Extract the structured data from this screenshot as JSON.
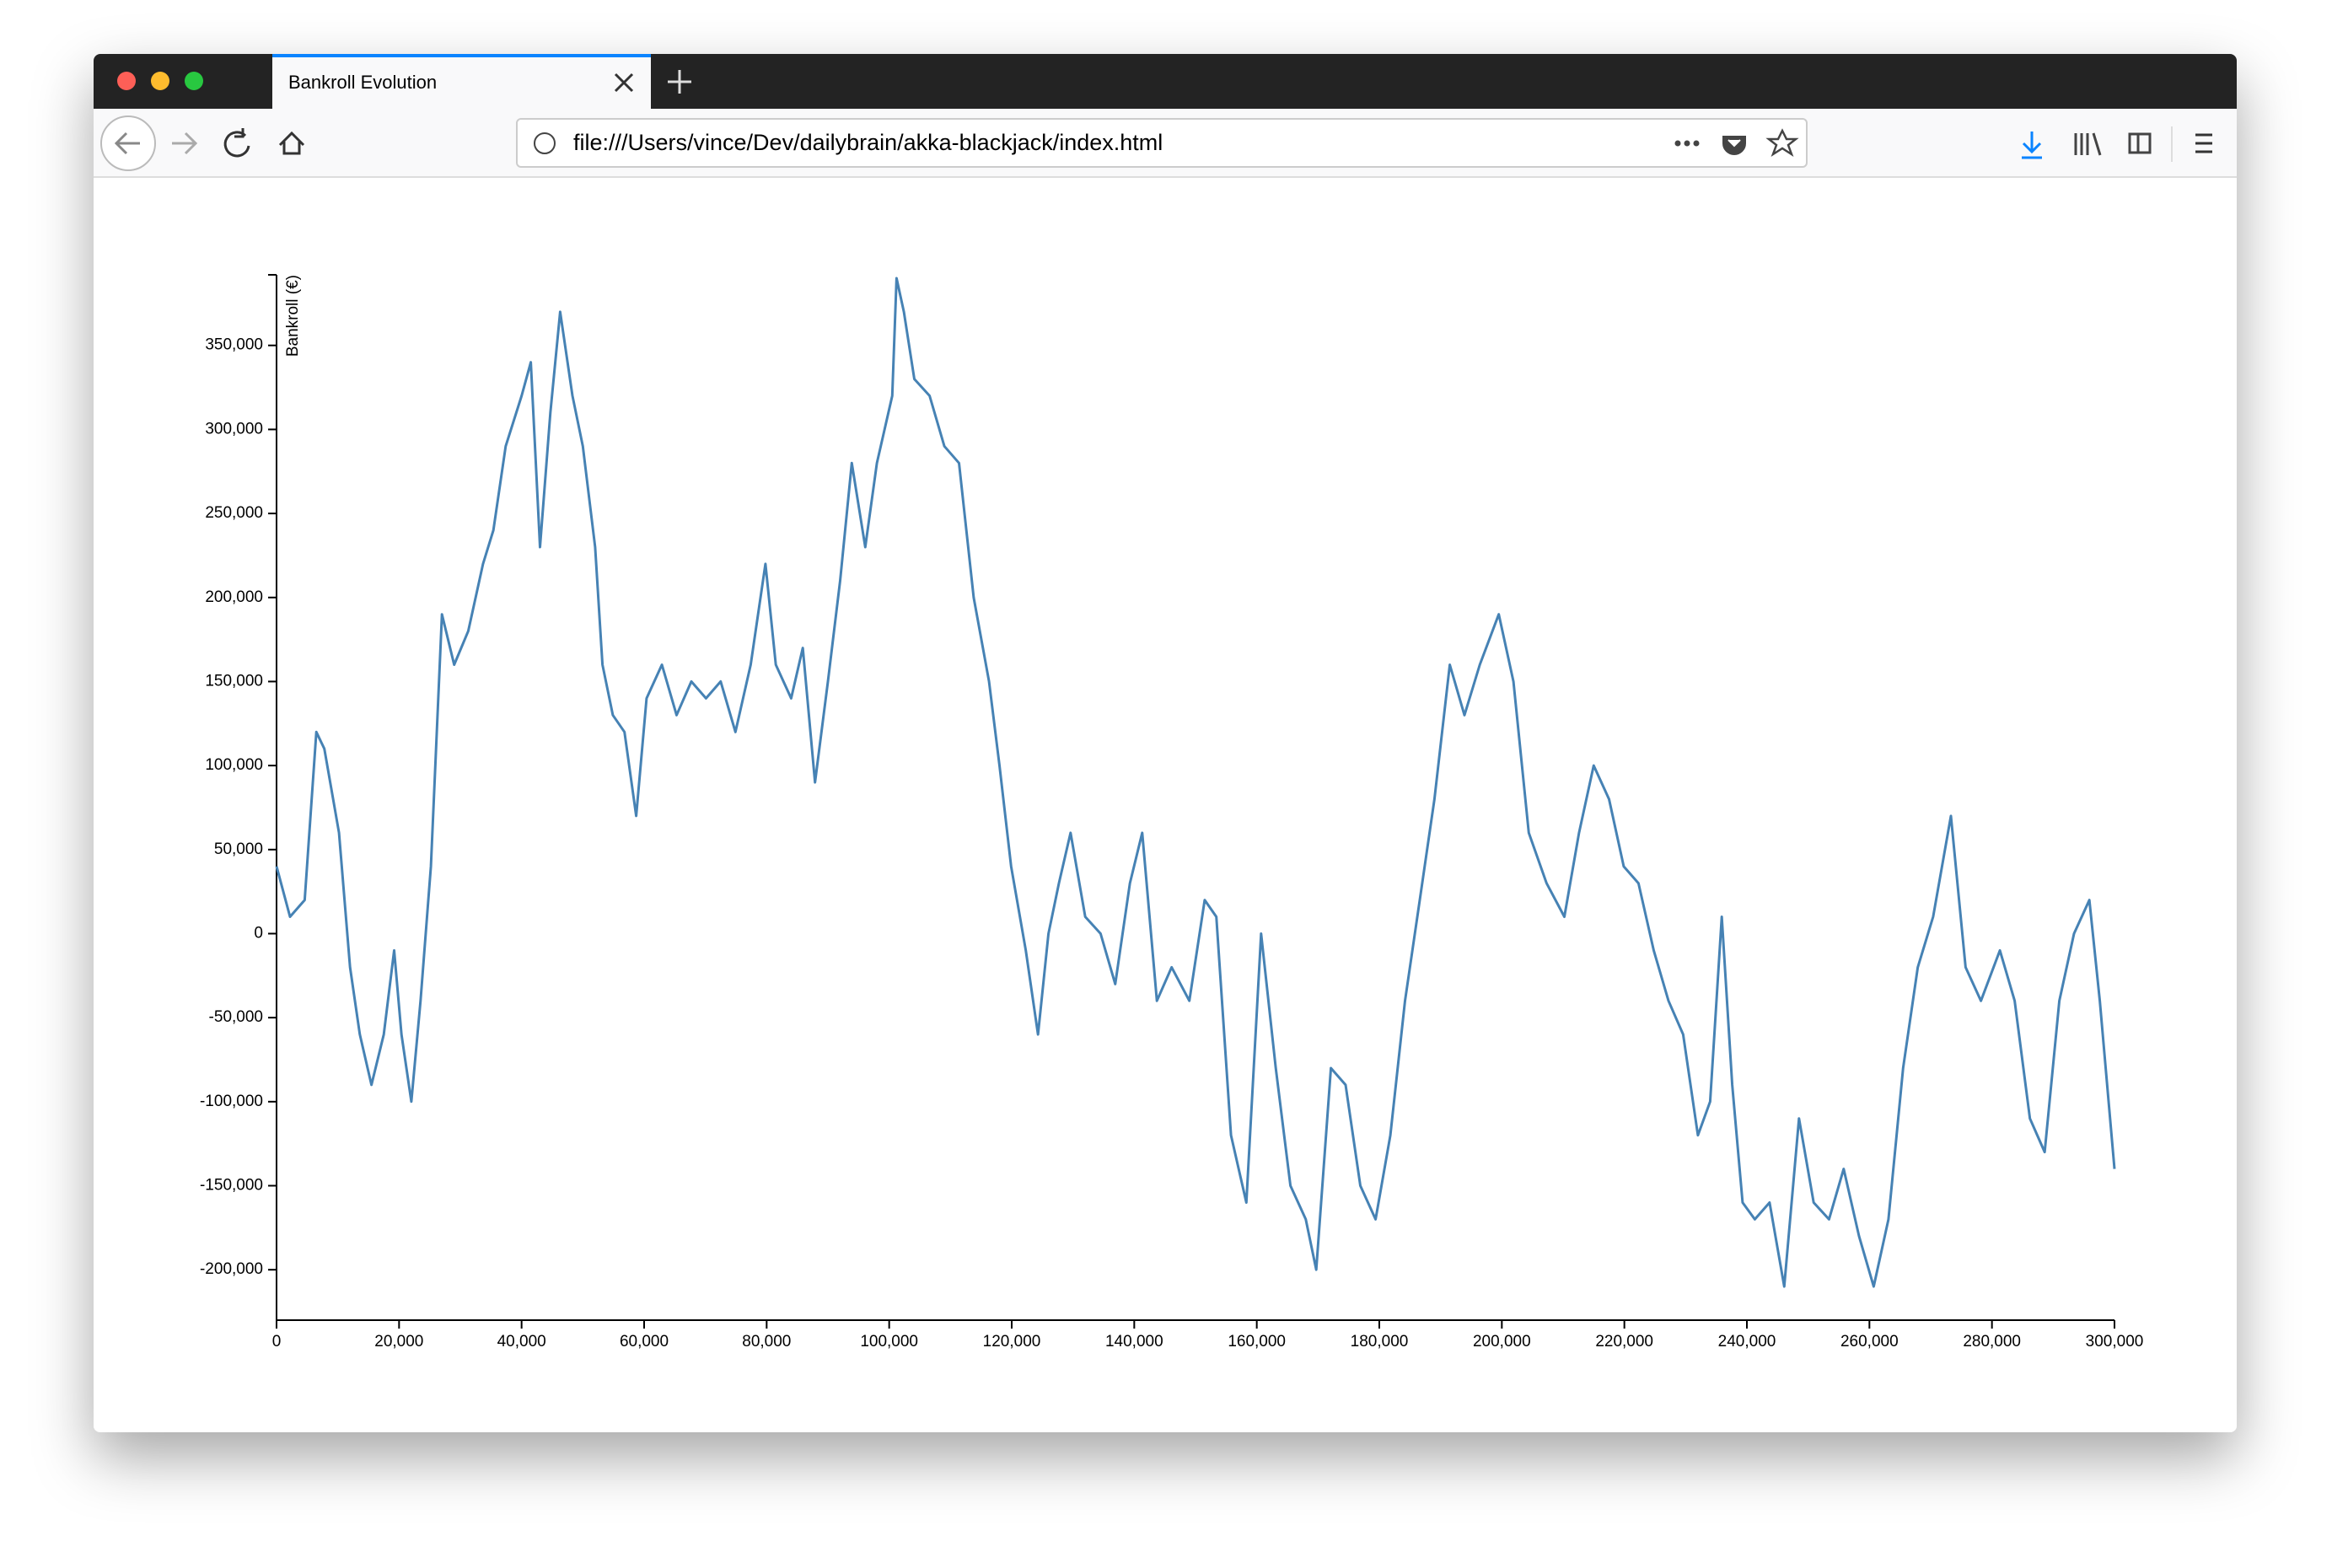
{
  "browser": {
    "tab_title": "Bankroll Evolution",
    "url": "file:///Users/vince/Dev/dailybrain/akka-blackjack/index.html"
  },
  "chart_data": {
    "type": "line",
    "y_label": "Bankroll (€)",
    "color": "#4682b4",
    "x": [
      0,
      2200,
      4600,
      6500,
      7800,
      10200,
      12000,
      13600,
      15500,
      17500,
      19200,
      20400,
      22000,
      23500,
      25200,
      27000,
      29000,
      31300,
      33700,
      35400,
      37400,
      40000,
      41500,
      43000,
      44700,
      46300,
      48300,
      50000,
      52000,
      53200,
      54900,
      56800,
      58700,
      60400,
      62900,
      65300,
      67700,
      70100,
      72500,
      74900,
      77400,
      79800,
      81500,
      84000,
      85900,
      87900,
      90000,
      92000,
      93900,
      96100,
      98000,
      100500,
      101200,
      102400,
      104100,
      106600,
      109000,
      111400,
      113800,
      116300,
      118000,
      119900,
      122300,
      124300,
      126000,
      127700,
      129600,
      132000,
      134500,
      136900,
      139300,
      141300,
      143700,
      146100,
      149000,
      151500,
      153400,
      155800,
      158300,
      160700,
      163100,
      165500,
      168000,
      169700,
      172100,
      174500,
      176900,
      179400,
      181800,
      184200,
      186600,
      189000,
      191500,
      193900,
      196400,
      199500,
      201900,
      204400,
      207300,
      210200,
      212600,
      215000,
      217500,
      219900,
      222300,
      224800,
      227200,
      229600,
      232000,
      234000,
      235900,
      237600,
      239300,
      241300,
      243700,
      246100,
      248500,
      250900,
      253400,
      255800,
      258300,
      260700,
      263100,
      265500,
      267900,
      270400,
      273300,
      275700,
      278200,
      281300,
      283700,
      286200,
      288600,
      291000,
      293400,
      295900,
      297600,
      300000
    ],
    "values": [
      40000,
      10000,
      20000,
      120000,
      110000,
      60000,
      -20000,
      -60000,
      -90000,
      -60000,
      -10000,
      -60000,
      -100000,
      -40000,
      40000,
      190000,
      160000,
      180000,
      220000,
      240000,
      290000,
      320000,
      340000,
      230000,
      310000,
      370000,
      320000,
      290000,
      230000,
      160000,
      130000,
      120000,
      70000,
      140000,
      160000,
      130000,
      150000,
      140000,
      150000,
      120000,
      160000,
      220000,
      160000,
      140000,
      170000,
      90000,
      150000,
      210000,
      280000,
      230000,
      280000,
      320000,
      390000,
      370000,
      330000,
      320000,
      290000,
      280000,
      200000,
      150000,
      100000,
      40000,
      -10000,
      -60000,
      0,
      30000,
      60000,
      10000,
      0,
      -30000,
      30000,
      60000,
      -40000,
      -20000,
      -40000,
      20000,
      10000,
      -120000,
      -160000,
      0,
      -80000,
      -150000,
      -170000,
      -200000,
      -80000,
      -90000,
      -150000,
      -170000,
      -120000,
      -40000,
      20000,
      80000,
      160000,
      130000,
      160000,
      190000,
      150000,
      60000,
      30000,
      10000,
      60000,
      100000,
      80000,
      40000,
      30000,
      -10000,
      -40000,
      -60000,
      -120000,
      -100000,
      10000,
      -90000,
      -160000,
      -170000,
      -160000,
      -210000,
      -110000,
      -160000,
      -170000,
      -140000,
      -180000,
      -210000,
      -170000,
      -80000,
      -20000,
      10000,
      70000,
      -20000,
      -40000,
      -10000,
      -40000,
      -110000,
      -130000,
      -40000,
      0,
      20000,
      -40000,
      -140000
    ],
    "xlim": [
      0,
      300000
    ],
    "ylim": [
      -230000,
      392000
    ],
    "xticks": [
      0,
      {
        "value": 20000,
        "label": "20,000"
      },
      {
        "value": 40000,
        "label": "40,000"
      },
      {
        "value": 60000,
        "label": "60,000"
      },
      {
        "value": 80000,
        "label": "80,000"
      },
      {
        "value": 100000,
        "label": "100,000"
      },
      {
        "value": 120000,
        "label": "120,000"
      },
      {
        "value": 140000,
        "label": "140,000"
      },
      {
        "value": 160000,
        "label": "160,000"
      },
      {
        "value": 180000,
        "label": "180,000"
      },
      {
        "value": 200000,
        "label": "200,000"
      },
      {
        "value": 220000,
        "label": "220,000"
      },
      {
        "value": 240000,
        "label": "240,000"
      },
      {
        "value": 260000,
        "label": "260,000"
      },
      {
        "value": 280000,
        "label": "280,000"
      },
      {
        "value": 300000,
        "label": "300,000"
      }
    ],
    "yticks": [
      {
        "value": -200000,
        "label": "-200,000"
      },
      {
        "value": -150000,
        "label": "-150,000"
      },
      {
        "value": -100000,
        "label": "-100,000"
      },
      {
        "value": -50000,
        "label": "-50,000"
      },
      0,
      {
        "value": 50000,
        "label": "50,000"
      },
      {
        "value": 100000,
        "label": "100,000"
      },
      {
        "value": 150000,
        "label": "150,000"
      },
      {
        "value": 200000,
        "label": "200,000"
      },
      {
        "value": 250000,
        "label": "250,000"
      },
      {
        "value": 300000,
        "label": "300,000"
      },
      {
        "value": 350000,
        "label": "350,000"
      }
    ]
  }
}
